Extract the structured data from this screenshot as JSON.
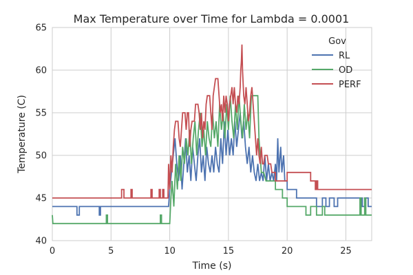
{
  "chart_data": {
    "type": "line",
    "title": "Max Temperature over Time for Lambda = 0.0001",
    "xlabel": "Time (s)",
    "ylabel": "Temperature (C)",
    "xlim": [
      0,
      27.2
    ],
    "ylim": [
      40,
      65
    ],
    "xticks": [
      0,
      5,
      10,
      15,
      20,
      25
    ],
    "yticks": [
      40,
      45,
      50,
      55,
      60,
      65
    ],
    "grid": true,
    "legend": {
      "title": "Gov",
      "placement": "top-right"
    },
    "series": [
      {
        "name": "RL",
        "color": "#4c72b0",
        "points": [
          [
            0,
            44
          ],
          [
            2.1,
            44
          ],
          [
            2.1,
            43
          ],
          [
            2.3,
            43
          ],
          [
            2.3,
            44
          ],
          [
            4.0,
            44
          ],
          [
            4.0,
            43
          ],
          [
            4.1,
            43
          ],
          [
            4.1,
            44
          ],
          [
            9.9,
            44
          ],
          [
            10.0,
            46
          ],
          [
            10.15,
            48
          ],
          [
            10.3,
            50
          ],
          [
            10.45,
            52
          ],
          [
            10.6,
            49
          ],
          [
            10.75,
            47
          ],
          [
            10.9,
            50
          ],
          [
            11.05,
            46
          ],
          [
            11.2,
            49
          ],
          [
            11.35,
            52
          ],
          [
            11.5,
            48
          ],
          [
            11.65,
            50
          ],
          [
            11.8,
            47
          ],
          [
            11.95,
            51
          ],
          [
            12.1,
            49
          ],
          [
            12.25,
            47
          ],
          [
            12.4,
            50
          ],
          [
            12.55,
            52
          ],
          [
            12.7,
            48
          ],
          [
            12.85,
            50
          ],
          [
            13.0,
            47
          ],
          [
            13.15,
            51
          ],
          [
            13.3,
            49
          ],
          [
            13.45,
            48
          ],
          [
            13.6,
            50
          ],
          [
            13.75,
            48
          ],
          [
            13.9,
            51
          ],
          [
            14.05,
            49
          ],
          [
            14.2,
            48
          ],
          [
            14.35,
            52
          ],
          [
            14.5,
            49
          ],
          [
            14.65,
            54
          ],
          [
            14.8,
            50
          ],
          [
            14.95,
            53
          ],
          [
            15.1,
            50
          ],
          [
            15.25,
            52
          ],
          [
            15.4,
            50
          ],
          [
            15.55,
            54
          ],
          [
            15.7,
            51
          ],
          [
            15.85,
            53
          ],
          [
            16.0,
            55
          ],
          [
            16.15,
            52
          ],
          [
            16.3,
            54
          ],
          [
            16.45,
            51
          ],
          [
            16.6,
            49
          ],
          [
            16.75,
            51
          ],
          [
            16.9,
            48
          ],
          [
            17.05,
            50
          ],
          [
            17.2,
            48
          ],
          [
            17.35,
            47
          ],
          [
            17.5,
            49
          ],
          [
            17.65,
            47
          ],
          [
            17.8,
            48
          ],
          [
            17.95,
            47
          ],
          [
            18.1,
            50
          ],
          [
            18.25,
            47
          ],
          [
            18.4,
            49
          ],
          [
            18.55,
            47
          ],
          [
            18.7,
            48
          ],
          [
            18.85,
            47
          ],
          [
            19.0,
            49
          ],
          [
            19.1,
            47
          ],
          [
            19.2,
            52
          ],
          [
            19.3,
            48
          ],
          [
            19.45,
            51
          ],
          [
            19.55,
            48
          ],
          [
            19.7,
            50
          ],
          [
            19.8,
            47
          ],
          [
            20.0,
            47
          ],
          [
            20.0,
            46
          ],
          [
            20.8,
            46
          ],
          [
            20.8,
            45
          ],
          [
            22.5,
            45
          ],
          [
            22.5,
            44
          ],
          [
            23.0,
            44
          ],
          [
            23.0,
            45
          ],
          [
            23.3,
            45
          ],
          [
            23.3,
            44
          ],
          [
            23.6,
            44
          ],
          [
            23.6,
            45
          ],
          [
            24.0,
            45
          ],
          [
            24.0,
            44
          ],
          [
            24.3,
            44
          ],
          [
            24.3,
            45
          ],
          [
            26.4,
            45
          ],
          [
            26.4,
            44
          ],
          [
            26.6,
            44
          ],
          [
            26.6,
            45
          ],
          [
            26.9,
            45
          ],
          [
            26.9,
            44
          ],
          [
            27.2,
            44
          ]
        ]
      },
      {
        "name": "OD",
        "color": "#55a868",
        "points": [
          [
            0,
            43
          ],
          [
            0.05,
            42
          ],
          [
            4.6,
            42
          ],
          [
            4.6,
            43
          ],
          [
            4.7,
            43
          ],
          [
            4.7,
            42
          ],
          [
            9.2,
            42
          ],
          [
            9.2,
            43
          ],
          [
            9.3,
            43
          ],
          [
            9.3,
            42
          ],
          [
            10.0,
            42
          ],
          [
            10.1,
            45
          ],
          [
            10.2,
            47
          ],
          [
            10.35,
            44
          ],
          [
            10.5,
            49
          ],
          [
            10.65,
            46
          ],
          [
            10.8,
            50
          ],
          [
            10.95,
            47
          ],
          [
            11.1,
            51
          ],
          [
            11.25,
            49
          ],
          [
            11.4,
            52
          ],
          [
            11.55,
            50
          ],
          [
            11.7,
            53
          ],
          [
            11.85,
            49
          ],
          [
            12.0,
            52
          ],
          [
            12.15,
            54
          ],
          [
            12.3,
            50
          ],
          [
            12.45,
            53
          ],
          [
            12.6,
            55
          ],
          [
            12.75,
            51
          ],
          [
            12.9,
            53
          ],
          [
            13.05,
            50
          ],
          [
            13.2,
            54
          ],
          [
            13.35,
            52
          ],
          [
            13.5,
            51
          ],
          [
            13.65,
            55
          ],
          [
            13.8,
            52
          ],
          [
            13.95,
            54
          ],
          [
            14.1,
            51
          ],
          [
            14.25,
            56
          ],
          [
            14.4,
            53
          ],
          [
            14.55,
            55
          ],
          [
            14.7,
            52
          ],
          [
            14.85,
            56
          ],
          [
            15.0,
            53
          ],
          [
            15.15,
            57
          ],
          [
            15.3,
            54
          ],
          [
            15.45,
            52
          ],
          [
            15.6,
            56
          ],
          [
            15.75,
            53
          ],
          [
            15.9,
            57
          ],
          [
            16.05,
            54
          ],
          [
            16.2,
            52
          ],
          [
            16.35,
            56
          ],
          [
            16.5,
            53
          ],
          [
            16.65,
            55
          ],
          [
            16.8,
            52
          ],
          [
            16.95,
            57
          ],
          [
            17.5,
            57
          ],
          [
            17.6,
            52
          ],
          [
            17.8,
            48
          ],
          [
            18.0,
            48
          ],
          [
            18.2,
            47
          ],
          [
            19.0,
            47
          ],
          [
            19.0,
            46
          ],
          [
            19.6,
            46
          ],
          [
            19.6,
            45
          ],
          [
            20.0,
            45
          ],
          [
            20.0,
            44
          ],
          [
            21.6,
            44
          ],
          [
            21.6,
            43
          ],
          [
            22.0,
            43
          ],
          [
            22.0,
            44
          ],
          [
            22.5,
            44
          ],
          [
            22.5,
            43
          ],
          [
            23.0,
            43
          ],
          [
            23.0,
            44
          ],
          [
            23.2,
            44
          ],
          [
            23.2,
            43
          ],
          [
            26.2,
            43
          ],
          [
            26.2,
            45
          ],
          [
            26.3,
            45
          ],
          [
            26.3,
            43
          ],
          [
            26.6,
            43
          ],
          [
            26.6,
            45
          ],
          [
            26.7,
            45
          ],
          [
            26.7,
            43
          ],
          [
            27.2,
            43
          ]
        ]
      },
      {
        "name": "PERF",
        "color": "#c44e52",
        "points": [
          [
            0,
            45
          ],
          [
            5.9,
            45
          ],
          [
            5.9,
            46
          ],
          [
            6.1,
            46
          ],
          [
            6.1,
            45
          ],
          [
            6.7,
            45
          ],
          [
            6.7,
            46
          ],
          [
            6.8,
            46
          ],
          [
            6.8,
            45
          ],
          [
            8.4,
            45
          ],
          [
            8.4,
            46
          ],
          [
            8.5,
            46
          ],
          [
            8.5,
            45
          ],
          [
            9.1,
            45
          ],
          [
            9.1,
            46
          ],
          [
            9.2,
            46
          ],
          [
            9.2,
            45
          ],
          [
            9.4,
            45
          ],
          [
            9.4,
            46
          ],
          [
            9.5,
            46
          ],
          [
            9.5,
            45
          ],
          [
            9.85,
            45
          ],
          [
            9.9,
            49
          ],
          [
            10.0,
            46
          ],
          [
            10.1,
            50
          ],
          [
            10.2,
            48
          ],
          [
            10.3,
            51
          ],
          [
            10.4,
            53
          ],
          [
            10.5,
            54
          ],
          [
            10.7,
            54
          ],
          [
            10.8,
            52
          ],
          [
            10.9,
            51
          ],
          [
            11.0,
            53
          ],
          [
            11.1,
            55
          ],
          [
            11.3,
            55
          ],
          [
            11.4,
            53
          ],
          [
            11.5,
            55
          ],
          [
            11.6,
            55
          ],
          [
            11.7,
            51
          ],
          [
            11.8,
            53
          ],
          [
            11.9,
            54
          ],
          [
            12.1,
            54
          ],
          [
            12.2,
            56
          ],
          [
            12.4,
            56
          ],
          [
            12.5,
            55
          ],
          [
            12.6,
            53
          ],
          [
            12.7,
            55
          ],
          [
            12.8,
            52
          ],
          [
            12.9,
            54
          ],
          [
            13.0,
            53
          ],
          [
            13.1,
            56
          ],
          [
            13.2,
            57
          ],
          [
            13.4,
            57
          ],
          [
            13.5,
            55
          ],
          [
            13.6,
            53
          ],
          [
            13.7,
            57
          ],
          [
            13.8,
            58
          ],
          [
            13.9,
            59
          ],
          [
            14.1,
            59
          ],
          [
            14.2,
            57
          ],
          [
            14.3,
            55
          ],
          [
            14.4,
            56
          ],
          [
            14.5,
            54
          ],
          [
            14.6,
            57
          ],
          [
            14.7,
            55
          ],
          [
            14.8,
            57
          ],
          [
            14.9,
            56
          ],
          [
            15.0,
            54
          ],
          [
            15.1,
            56
          ],
          [
            15.2,
            57
          ],
          [
            15.3,
            58
          ],
          [
            15.4,
            56
          ],
          [
            15.5,
            58
          ],
          [
            15.6,
            56
          ],
          [
            15.7,
            55
          ],
          [
            15.8,
            57
          ],
          [
            15.9,
            56
          ],
          [
            16.0,
            58
          ],
          [
            16.05,
            60
          ],
          [
            16.1,
            61
          ],
          [
            16.15,
            63
          ],
          [
            16.2,
            60
          ],
          [
            16.3,
            57
          ],
          [
            16.4,
            56
          ],
          [
            16.5,
            58
          ],
          [
            16.6,
            56
          ],
          [
            16.7,
            54
          ],
          [
            16.8,
            55
          ],
          [
            16.9,
            57
          ],
          [
            17.0,
            58
          ],
          [
            17.1,
            56
          ],
          [
            17.2,
            54
          ],
          [
            17.3,
            52
          ],
          [
            17.4,
            50
          ],
          [
            17.5,
            52
          ],
          [
            17.6,
            50
          ],
          [
            17.7,
            49
          ],
          [
            17.8,
            51
          ],
          [
            17.9,
            49
          ],
          [
            18.0,
            49
          ],
          [
            18.1,
            50
          ],
          [
            18.3,
            50
          ],
          [
            18.4,
            49
          ],
          [
            18.6,
            49
          ],
          [
            18.7,
            48
          ],
          [
            19.0,
            48
          ],
          [
            19.0,
            47
          ],
          [
            20.0,
            47
          ],
          [
            20.0,
            48
          ],
          [
            22.0,
            48
          ],
          [
            22.0,
            47
          ],
          [
            22.4,
            47
          ],
          [
            22.4,
            46
          ],
          [
            22.5,
            46
          ],
          [
            22.5,
            47
          ],
          [
            22.6,
            47
          ],
          [
            22.6,
            46
          ],
          [
            27.2,
            46
          ]
        ]
      }
    ]
  }
}
